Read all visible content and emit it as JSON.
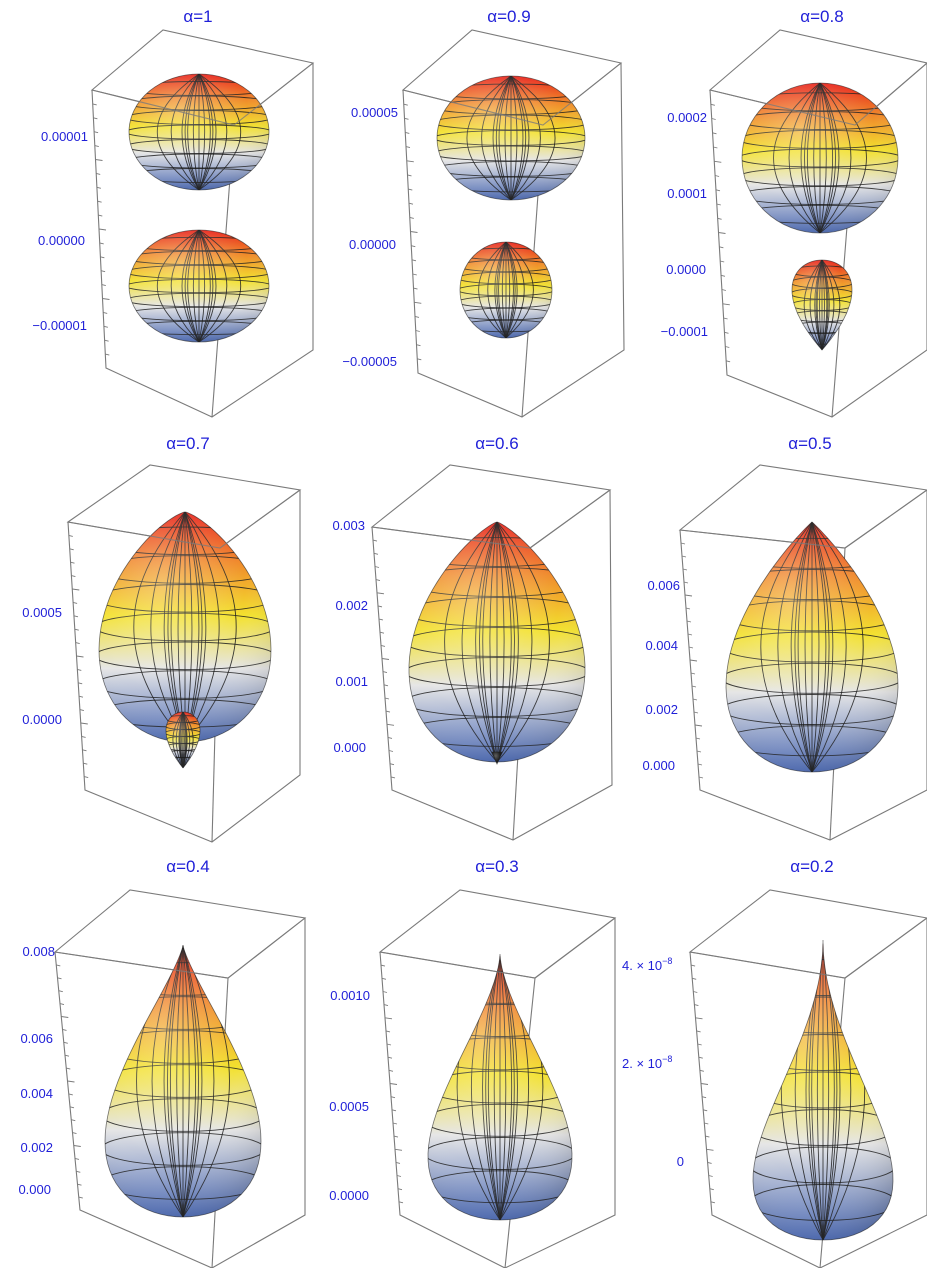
{
  "chart_data": {
    "type": "3d-surface-grid",
    "colors": {
      "text": "#1f1fd8",
      "box": "#7a7a7a",
      "mesh": "#1b1b1b",
      "top": "#e8231c",
      "upper": "#f08a2a",
      "middle": "#f3e12e",
      "lower": "#e6e6e6",
      "bottom": "#4a69b6"
    },
    "panels": [
      {
        "title": "α=1",
        "alpha": 1,
        "ticks": [
          {
            "label": "0.00001",
            "value": 1e-05
          },
          {
            "label": "0.00000",
            "value": 0
          },
          {
            "label": "−0.00001",
            "value": -1e-05
          }
        ]
      },
      {
        "title": "α=0.9",
        "alpha": 0.9,
        "ticks": [
          {
            "label": "0.00005",
            "value": 5e-05
          },
          {
            "label": "0.00000",
            "value": 0
          },
          {
            "label": "−0.00005",
            "value": -5e-05
          }
        ]
      },
      {
        "title": "α=0.8",
        "alpha": 0.8,
        "ticks": [
          {
            "label": "0.0002",
            "value": 0.0002
          },
          {
            "label": "0.0001",
            "value": 0.0001
          },
          {
            "label": "0.0000",
            "value": 0
          },
          {
            "label": "−0.0001",
            "value": -0.0001
          }
        ]
      },
      {
        "title": "α=0.7",
        "alpha": 0.7,
        "ticks": [
          {
            "label": "0.0005",
            "value": 0.0005
          },
          {
            "label": "0.0000",
            "value": 0
          }
        ]
      },
      {
        "title": "α=0.6",
        "alpha": 0.6,
        "ticks": [
          {
            "label": "0.003",
            "value": 0.003
          },
          {
            "label": "0.002",
            "value": 0.002
          },
          {
            "label": "0.001",
            "value": 0.001
          },
          {
            "label": "0.000",
            "value": 0
          }
        ]
      },
      {
        "title": "α=0.5",
        "alpha": 0.5,
        "ticks": [
          {
            "label": "0.006",
            "value": 0.006
          },
          {
            "label": "0.004",
            "value": 0.004
          },
          {
            "label": "0.002",
            "value": 0.002
          },
          {
            "label": "0.000",
            "value": 0
          }
        ]
      },
      {
        "title": "α=0.4",
        "alpha": 0.4,
        "ticks": [
          {
            "label": "0.008",
            "value": 0.008
          },
          {
            "label": "0.006",
            "value": 0.006
          },
          {
            "label": "0.004",
            "value": 0.004
          },
          {
            "label": "0.002",
            "value": 0.002
          },
          {
            "label": "0.000",
            "value": 0
          }
        ]
      },
      {
        "title": "α=0.3",
        "alpha": 0.3,
        "ticks": [
          {
            "label": "0.0010",
            "value": 0.001
          },
          {
            "label": "0.0005",
            "value": 0.0005
          },
          {
            "label": "0.0000",
            "value": 0
          }
        ]
      },
      {
        "title": "α=0.2",
        "alpha": 0.2,
        "ticks": [
          {
            "label": "4. × 10",
            "exp": "−8",
            "value": 4e-08
          },
          {
            "label": "2. × 10",
            "exp": "−8",
            "value": 2e-08
          },
          {
            "label": "0",
            "value": 0
          }
        ]
      }
    ]
  }
}
